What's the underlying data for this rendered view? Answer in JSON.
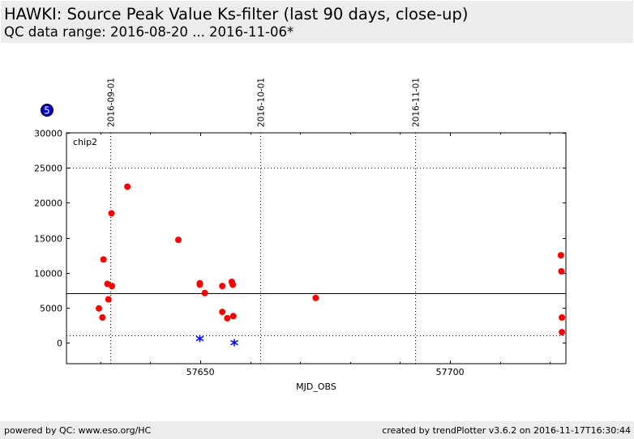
{
  "header": {
    "title": "HAWKI: Source Peak Value Ks-filter (last 90 days, close-up)",
    "subtitle": "QC data range: 2016-08-20 ... 2016-11-06*"
  },
  "footer": {
    "left": "powered by QC: www.eso.org/HC",
    "right": "created by trendPlotter v3.6.2 on 2016-11-17T16:30:44"
  },
  "badge": "5",
  "chart_data": {
    "type": "scatter",
    "panel_label": "chip2",
    "xlabel": "MJD_OBS",
    "ylabel": "",
    "xlim": [
      57623.2,
      57723.2
    ],
    "ylim": [
      -3000,
      30000
    ],
    "x_ticks": [
      57650,
      57700
    ],
    "y_ticks": [
      0,
      5000,
      10000,
      15000,
      20000,
      25000,
      30000
    ],
    "date_ticks": [
      {
        "mjd": 57632,
        "label": "2016-09-01"
      },
      {
        "mjd": 57662,
        "label": "2016-10-01"
      },
      {
        "mjd": 57693,
        "label": "2016-11-01"
      }
    ],
    "reference_lines": [
      {
        "y": 7100,
        "style": "solid"
      },
      {
        "y": 25000,
        "style": "dotted"
      },
      {
        "y": 1000,
        "style": "dotted"
      }
    ],
    "grid": "vertical dotted at date ticks",
    "colors": {
      "valid": "#ff0000",
      "outlier": "#0000ff"
    },
    "series": [
      {
        "marker": "circle",
        "color": "#ff0000",
        "points": [
          [
            57629.7,
            4900
          ],
          [
            57630.4,
            3600
          ],
          [
            57630.6,
            11900
          ],
          [
            57631.4,
            8400
          ],
          [
            57631.6,
            6200
          ],
          [
            57632.2,
            18500
          ],
          [
            57632.3,
            8100
          ],
          [
            57635.4,
            22300
          ],
          [
            57645.6,
            14700
          ],
          [
            57649.9,
            8500
          ],
          [
            57649.9,
            8300
          ],
          [
            57650.9,
            7100
          ],
          [
            57654.4,
            4400
          ],
          [
            57654.4,
            8100
          ],
          [
            57655.4,
            3500
          ],
          [
            57656.3,
            8700
          ],
          [
            57656.5,
            8300
          ],
          [
            57656.6,
            3800
          ],
          [
            57673.1,
            6400
          ],
          [
            57722.2,
            12500
          ],
          [
            57722.3,
            10200
          ],
          [
            57722.4,
            3600
          ],
          [
            57722.4,
            1500
          ]
        ]
      },
      {
        "marker": "star",
        "color": "#0000ff",
        "points": [
          [
            57649.9,
            600
          ],
          [
            57656.8,
            0
          ]
        ]
      }
    ]
  }
}
